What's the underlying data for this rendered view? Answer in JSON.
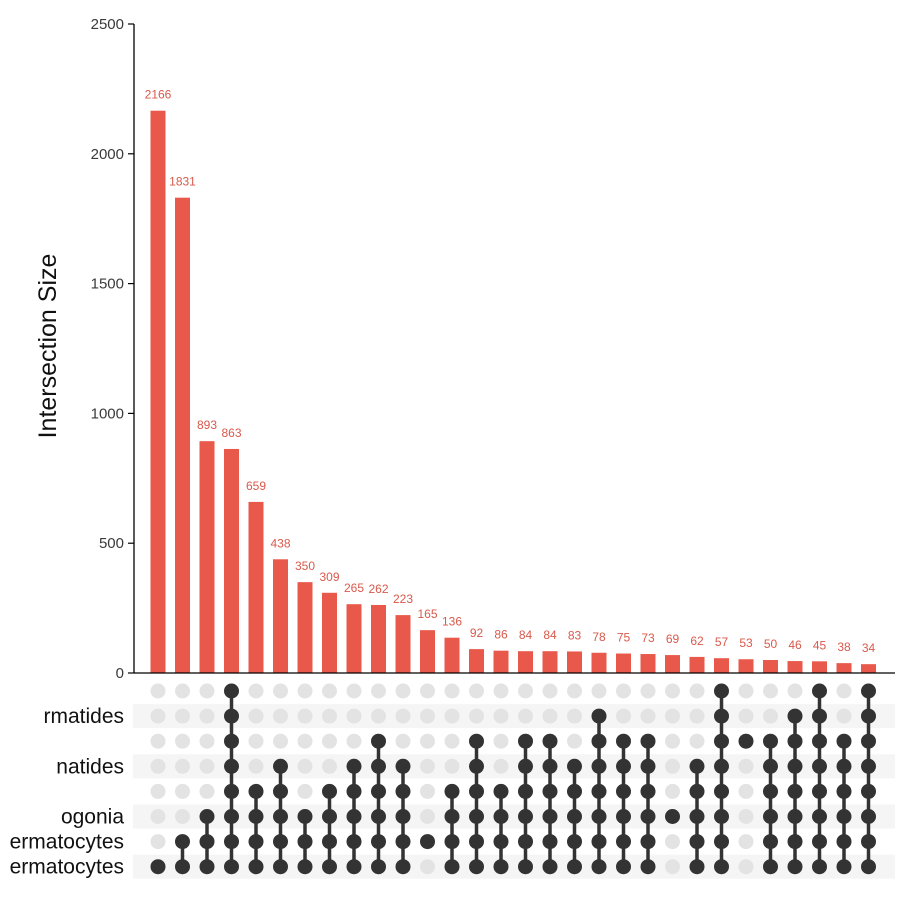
{
  "chart_data": {
    "type": "upset",
    "title": "",
    "ylabel": "Intersection Size",
    "ylim": [
      0,
      2500
    ],
    "yticks": [
      "0",
      "500",
      "1000",
      "1500",
      "2000",
      "2500"
    ],
    "grid": false,
    "values": [
      2166,
      1831,
      893,
      863,
      659,
      438,
      350,
      309,
      265,
      262,
      223,
      165,
      136,
      92,
      86,
      84,
      84,
      83,
      78,
      75,
      73,
      69,
      62,
      57,
      53,
      50,
      46,
      45,
      38,
      34
    ],
    "value_labels": [
      "2166",
      "1831",
      "893",
      "863",
      "659",
      "438",
      "350",
      "309",
      "265",
      "262",
      "223",
      "165",
      "136",
      "92",
      "86",
      "84",
      "84",
      "83",
      "78",
      "75",
      "73",
      "69",
      "62",
      "57",
      "53",
      "50",
      "46",
      "45",
      "38",
      "34"
    ],
    "visible_set_labels": [
      "rmatides",
      "natides",
      "ogonia",
      "ermatocytes",
      "ermatocytes"
    ],
    "set_label_rows": [
      1,
      3,
      5,
      6,
      7
    ],
    "matrix_rows": 8,
    "intersections": [
      [
        7
      ],
      [
        6,
        7
      ],
      [
        5,
        6,
        7
      ],
      [
        0,
        1,
        2,
        3,
        4,
        5,
        6,
        7
      ],
      [
        4,
        5,
        6,
        7
      ],
      [
        3,
        4,
        5,
        6,
        7
      ],
      [
        5,
        6,
        7
      ],
      [
        4,
        5,
        6,
        7
      ],
      [
        3,
        4,
        5,
        6,
        7
      ],
      [
        2,
        3,
        4,
        5,
        6,
        7
      ],
      [
        3,
        4,
        5,
        6,
        7
      ],
      [
        6
      ],
      [
        4,
        5,
        6,
        7
      ],
      [
        2,
        3,
        4,
        5,
        6,
        7
      ],
      [
        4,
        5,
        6,
        7
      ],
      [
        2,
        3,
        4,
        5,
        6,
        7
      ],
      [
        2,
        3,
        4,
        5,
        6,
        7
      ],
      [
        3,
        4,
        5,
        6,
        7
      ],
      [
        1,
        2,
        3,
        4,
        5,
        6,
        7
      ],
      [
        2,
        3,
        4,
        5,
        6,
        7
      ],
      [
        2,
        3,
        4,
        5,
        6,
        7
      ],
      [
        5
      ],
      [
        3,
        4,
        5,
        6,
        7
      ],
      [
        0,
        1,
        2,
        3,
        4,
        5,
        6,
        7
      ],
      [
        2
      ],
      [
        2,
        3,
        4,
        5,
        6,
        7
      ],
      [
        1,
        2,
        3,
        4,
        5,
        6,
        7
      ],
      [
        0,
        1,
        2,
        3,
        4,
        5,
        6,
        7
      ],
      [
        2,
        3,
        4,
        5,
        6,
        7
      ],
      [
        0,
        1,
        2,
        3,
        4,
        5,
        6,
        7
      ]
    ],
    "colors": {
      "bar": "#e8584b",
      "bar_label": "#d9594c",
      "dot_active": "#333333",
      "dot_inactive": "#e3e3e3",
      "stripe": "#f5f5f5",
      "axis": "#000000"
    }
  }
}
